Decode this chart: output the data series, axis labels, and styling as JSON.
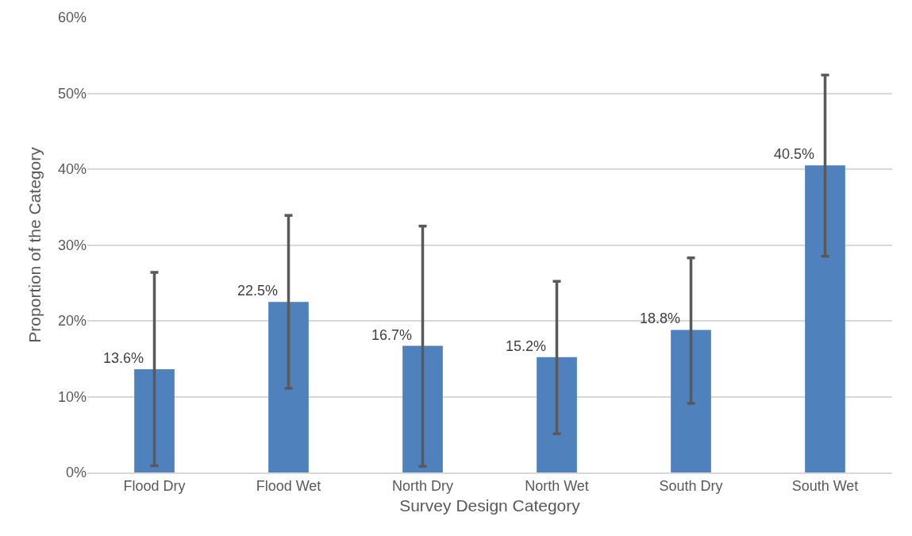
{
  "chart_data": {
    "type": "bar",
    "xlabel": "Survey Design Category",
    "ylabel": "Proportion of the Category",
    "categories": [
      "Flood Dry",
      "Flood Wet",
      "North Dry",
      "North Wet",
      "South Dry",
      "South Wet"
    ],
    "values": [
      13.6,
      22.5,
      16.7,
      15.2,
      18.8,
      40.5
    ],
    "value_labels": [
      "13.6%",
      "22.5%",
      "16.7%",
      "15.2%",
      "18.8%",
      "40.5%"
    ],
    "errors": [
      [
        0.9,
        26.4
      ],
      [
        11.1,
        33.9
      ],
      [
        0.8,
        32.5
      ],
      [
        5.1,
        25.2
      ],
      [
        9.1,
        28.3
      ],
      [
        28.5,
        52.4
      ]
    ],
    "color": "#4f81bd",
    "ylim": [
      0,
      60
    ],
    "yticks": [
      {
        "value": 0,
        "label": "0%"
      },
      {
        "value": 10,
        "label": "10%"
      },
      {
        "value": 20,
        "label": "20%"
      },
      {
        "value": 30,
        "label": "30%"
      },
      {
        "value": 40,
        "label": "40%"
      },
      {
        "value": 50,
        "label": "50%"
      },
      {
        "value": 60,
        "label": "60%"
      }
    ],
    "grid": "y"
  }
}
